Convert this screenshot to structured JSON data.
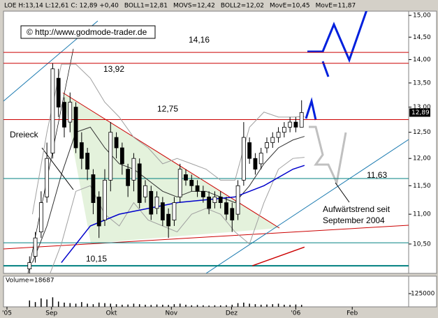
{
  "chart_data": {
    "type": "candlestick",
    "header": [
      {
        "text": "LOE H:13,14 L:12,61 C: 12,89 +0,40",
        "color": "#000000"
      },
      {
        "text": "BOLL1=12,81",
        "color": "#808080"
      },
      {
        "text": "MOVS=12,42",
        "color": "#404040"
      },
      {
        "text": "BOLL2=12,02",
        "color": "#808080"
      },
      {
        "text": "MovE=10,45",
        "color": "#dd0000"
      },
      {
        "text": "MovE=11,87",
        "color": "#0000dd"
      }
    ],
    "copyright": "© http://www.godmode-trader.de",
    "last_price": {
      "value": 12.89,
      "label": "12,89"
    },
    "log_scale": true,
    "xlim": [
      0,
      140
    ],
    "xticks": [
      {
        "value": 1.2,
        "label": "'05"
      },
      {
        "value": 16.6,
        "label": "Sep"
      },
      {
        "value": 37.3,
        "label": "Okt"
      },
      {
        "value": 58,
        "label": "Nov"
      },
      {
        "value": 78.8,
        "label": "Dez"
      },
      {
        "value": 101,
        "label": "'06"
      },
      {
        "value": 120.5,
        "label": "Feb"
      }
    ],
    "ylim": [
      10.03,
      15.1
    ],
    "yticks": [
      {
        "value": 10.5,
        "label": "10,50"
      },
      {
        "value": 11,
        "label": "11,00"
      },
      {
        "value": 11.5,
        "label": "11,50"
      },
      {
        "value": 12,
        "label": "12,00"
      },
      {
        "value": 12.5,
        "label": "12,50"
      },
      {
        "value": 13,
        "label": "13,00"
      },
      {
        "value": 13.5,
        "label": "13,50"
      },
      {
        "value": 14,
        "label": "14,00"
      },
      {
        "value": 14.5,
        "label": "14,50"
      },
      {
        "value": 15,
        "label": "15,00"
      }
    ],
    "x": [
      9,
      11,
      13,
      15,
      17,
      19,
      21,
      23,
      25,
      27,
      29,
      31,
      33,
      35,
      37,
      39,
      41,
      43,
      45,
      47,
      49,
      51,
      53,
      55,
      57,
      59,
      61,
      63,
      65,
      67,
      69,
      71,
      73,
      75,
      77,
      79,
      81,
      83,
      85,
      87,
      89,
      91,
      93,
      95,
      97,
      99,
      101,
      103
    ],
    "open": [
      10.1,
      10.3,
      10.7,
      11.3,
      12.1,
      13.6,
      13.1,
      12.7,
      13.0,
      12.3,
      12.1,
      11.7,
      11.3,
      10.9,
      11.6,
      12.4,
      12.2,
      11.8,
      11.6,
      11.9,
      11.3,
      11.4,
      11.1,
      11.2,
      11.0,
      10.9,
      11.3,
      11.7,
      11.6,
      11.5,
      11.4,
      11.3,
      11.2,
      11.3,
      11.2,
      11.1,
      11.0,
      11.6,
      12.3,
      12.0,
      11.9,
      12.2,
      12.3,
      12.4,
      12.5,
      12.6,
      12.7,
      12.6
    ],
    "high": [
      10.3,
      10.7,
      11.4,
      12.3,
      13.92,
      13.8,
      13.2,
      13.3,
      13.1,
      12.5,
      12.2,
      11.8,
      11.4,
      11.8,
      12.7,
      12.5,
      12.3,
      11.9,
      12.1,
      12.0,
      11.6,
      11.5,
      11.4,
      11.3,
      11.1,
      11.3,
      11.9,
      11.8,
      11.7,
      11.6,
      11.5,
      11.4,
      11.4,
      11.4,
      11.3,
      11.2,
      11.6,
      12.7,
      12.4,
      12.1,
      12.2,
      12.4,
      12.5,
      12.6,
      12.7,
      12.8,
      12.8,
      13.14
    ],
    "low": [
      9.9,
      10.2,
      10.6,
      11.2,
      12.0,
      12.8,
      12.4,
      12.5,
      12.1,
      11.8,
      11.6,
      11.0,
      10.6,
      10.8,
      11.4,
      12.0,
      11.7,
      11.3,
      11.4,
      11.1,
      11.2,
      10.9,
      11.0,
      10.8,
      10.6,
      10.8,
      11.2,
      11.5,
      11.4,
      11.3,
      11.2,
      11.0,
      11.1,
      11.1,
      10.9,
      10.7,
      10.9,
      11.5,
      11.9,
      11.7,
      11.8,
      12.1,
      12.2,
      12.3,
      12.4,
      12.5,
      12.5,
      12.61
    ],
    "close": [
      10.2,
      10.6,
      11.2,
      12.0,
      13.8,
      13.0,
      12.6,
      13.1,
      12.2,
      12.0,
      11.8,
      11.2,
      10.8,
      11.6,
      12.5,
      12.2,
      11.9,
      11.5,
      12.0,
      11.2,
      11.5,
      11.0,
      11.3,
      10.9,
      10.8,
      11.2,
      11.8,
      11.6,
      11.5,
      11.4,
      11.3,
      11.1,
      11.3,
      11.2,
      11.0,
      10.9,
      11.5,
      12.4,
      12.0,
      11.8,
      12.1,
      12.3,
      12.4,
      12.5,
      12.6,
      12.7,
      12.6,
      12.89
    ],
    "lines": [
      {
        "color": "#a0a0a0",
        "x": [
          10,
          15,
          20,
          25,
          30,
          35,
          40,
          45,
          50,
          55,
          60,
          65,
          70,
          75,
          80,
          85,
          90,
          95,
          100,
          104
        ],
        "values": [
          11.0,
          12.5,
          13.9,
          13.9,
          13.6,
          13.1,
          12.8,
          12.4,
          12.2,
          11.9,
          12.0,
          11.9,
          11.8,
          11.6,
          11.6,
          12.6,
          12.9,
          12.8,
          12.8,
          12.81
        ]
      },
      {
        "color": "#a0a0a0",
        "x": [
          10,
          15,
          20,
          25,
          30,
          35,
          40,
          45,
          50,
          55,
          60,
          65,
          70,
          75,
          80,
          85,
          90,
          95,
          100,
          104
        ],
        "values": [
          9.8,
          9.9,
          10.5,
          11.4,
          11.5,
          11.0,
          10.8,
          11.2,
          10.9,
          10.8,
          10.7,
          11.0,
          11.1,
          11.0,
          10.7,
          10.5,
          11.2,
          11.8,
          12.0,
          12.02
        ]
      },
      {
        "color": "#303030",
        "x": [
          10,
          15,
          20,
          25,
          30,
          35,
          40,
          45,
          50,
          55,
          60,
          65,
          70,
          75,
          80,
          85,
          90,
          95,
          100,
          104
        ],
        "values": [
          10.2,
          10.8,
          11.7,
          12.5,
          12.6,
          12.2,
          11.9,
          11.8,
          11.6,
          11.4,
          11.3,
          11.4,
          11.4,
          11.3,
          11.2,
          11.5,
          11.9,
          12.2,
          12.35,
          12.42
        ]
      },
      {
        "color": "#0000cc",
        "x": [
          20,
          30,
          40,
          50,
          60,
          70,
          80,
          90,
          100,
          104
        ],
        "values": [
          10.2,
          10.8,
          11.0,
          11.1,
          11.2,
          11.25,
          11.3,
          11.5,
          11.8,
          11.87
        ]
      },
      {
        "color": "#cc0000",
        "x": [
          86,
          104
        ],
        "values": [
          10.15,
          10.45
        ]
      }
    ],
    "levels": [
      {
        "value": 14.16,
        "label": "14,16",
        "color": "#cc0000"
      },
      {
        "value": 13.92,
        "label": "13,92",
        "color": "#cc0000"
      },
      {
        "value": 12.75,
        "label": "12,75",
        "color": "#cc0000"
      },
      {
        "value": 11.63,
        "label": "11,63",
        "color": "#008080"
      },
      {
        "value": 10.52,
        "label": null,
        "color": "#008080"
      },
      {
        "value": 10.15,
        "label": "10,15",
        "color": "#008080"
      }
    ],
    "annotations": [
      "Dreieck",
      "Aufwärtstrend seit",
      "September 2004"
    ],
    "volume_label": "Volume=18687",
    "vlim": [
      0,
      290000
    ],
    "vticks": [
      125000
    ],
    "volume": [
      60000,
      45000,
      80000,
      70000,
      90000,
      50000,
      40000,
      35000,
      30000,
      45000,
      30000,
      25000,
      40000,
      35000,
      30000,
      25000,
      20000,
      22000,
      30000,
      25000,
      20000,
      18000,
      22000,
      20000,
      18000,
      25000,
      30000,
      20000,
      15000,
      18000,
      15000,
      12000,
      15000,
      14000,
      16000,
      20000,
      35000,
      40000,
      30000,
      25000,
      20000,
      22000,
      25000,
      30000,
      20000,
      18000,
      22000,
      18687
    ]
  }
}
